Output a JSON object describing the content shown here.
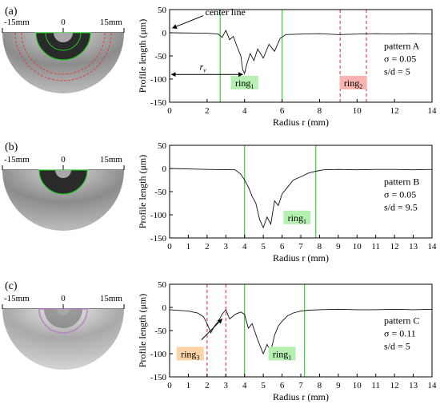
{
  "panels": [
    {
      "panel_label": "(a)",
      "photo": {
        "left_label": "-15mm",
        "center_label": "0",
        "right_label": "15mm",
        "has_dashed_red_rings": true
      },
      "info": {
        "pattern": "pattern A",
        "sigma": "σ = 0.05",
        "sd": "s/d = 5"
      },
      "annotations": {
        "center_line": "center line",
        "rv_base": "r",
        "rv_sub": "v"
      },
      "rings": [
        {
          "base": "ring",
          "sub": "1",
          "color": "green",
          "from": 2.7,
          "to": 6.0,
          "label_x": 4.0,
          "label_y": -112,
          "label_bg": "#b6f0b0"
        },
        {
          "base": "ring",
          "sub": "2",
          "color": "red",
          "from": 9.1,
          "to": 10.5,
          "label_x": 9.8,
          "label_y": -112,
          "label_bg": "#f6b3b0"
        }
      ]
    },
    {
      "panel_label": "(b)",
      "photo": {
        "left_label": "-15mm",
        "center_label": "0",
        "right_label": "15mm",
        "has_dashed_red_rings": false
      },
      "info": {
        "pattern": "pattern B",
        "sigma": "σ = 0.05",
        "sd": "s/d = 9.5"
      },
      "annotations": {},
      "rings": [
        {
          "base": "ring",
          "sub": "1",
          "color": "green",
          "from": 4.0,
          "to": 7.8,
          "label_x": 6.8,
          "label_y": -110,
          "label_bg": "#b6f0b0"
        }
      ]
    },
    {
      "panel_label": "(c)",
      "photo": {
        "left_label": "-15mm",
        "center_label": "0",
        "right_label": "15mm",
        "has_dashed_red_rings": false
      },
      "info": {
        "pattern": "pattern C",
        "sigma": "σ = 0.11",
        "sd": "s/d = 5"
      },
      "annotations": {},
      "rings": [
        {
          "base": "ring",
          "sub": "3",
          "color": "red",
          "from": 2.0,
          "to": 3.0,
          "label_x": 1.1,
          "label_y": -104,
          "label_bg": "#fbd3a6"
        },
        {
          "base": "ring",
          "sub": "1",
          "color": "green",
          "from": 4.0,
          "to": 7.2,
          "label_x": 6.0,
          "label_y": -104,
          "label_bg": "#b6f0b0"
        }
      ]
    }
  ],
  "chart_data": [
    {
      "type": "line",
      "xlabel": "Radius r (mm)",
      "ylabel": "Profile length (μm)",
      "xlim": [
        0,
        14
      ],
      "ylim": [
        -150,
        50
      ],
      "xticks": [
        0,
        2,
        4,
        6,
        8,
        10,
        12,
        14
      ],
      "yticks": [
        50,
        0,
        -50,
        -100,
        -150
      ],
      "series": [
        {
          "x": [
            0,
            2.0,
            2.6,
            2.8,
            3.0,
            3.2,
            3.4,
            3.6,
            3.8,
            3.9,
            4.0,
            4.1,
            4.3,
            4.5,
            4.7,
            5.0,
            5.3,
            5.6,
            5.9,
            6.2,
            7.0,
            8.0,
            9.0,
            10.0,
            11.0,
            12.0,
            13.0,
            14.0
          ],
          "y": [
            0,
            -1,
            -3,
            -10,
            5,
            -15,
            -8,
            -30,
            -50,
            -80,
            -88,
            -70,
            -45,
            -60,
            -35,
            -55,
            -25,
            -40,
            -12,
            -4,
            -3,
            -2,
            -4,
            -3,
            -2,
            -3,
            -2,
            -3
          ]
        }
      ]
    },
    {
      "type": "line",
      "xlabel": "Radius r (mm)",
      "ylabel": "Profile length (μm)",
      "xlim": [
        0,
        14
      ],
      "ylim": [
        -150,
        50
      ],
      "xticks": [
        0,
        1,
        2,
        3,
        4,
        5,
        6,
        7,
        8,
        9,
        10,
        11,
        12,
        13,
        14
      ],
      "yticks": [
        50,
        0,
        -50,
        -100,
        -150
      ],
      "series": [
        {
          "x": [
            0,
            2.0,
            3.5,
            3.8,
            4.0,
            4.2,
            4.4,
            4.6,
            4.8,
            5.0,
            5.2,
            5.4,
            5.6,
            5.8,
            6.0,
            6.3,
            6.6,
            7.0,
            7.4,
            7.8,
            8.2,
            9.0,
            10.0,
            11.0,
            12.0,
            13.0,
            14.0
          ],
          "y": [
            0,
            -2,
            -3,
            -12,
            -25,
            -40,
            -60,
            -75,
            -110,
            -128,
            -105,
            -120,
            -70,
            -80,
            -55,
            -40,
            -25,
            -18,
            -10,
            -6,
            -3,
            -2,
            -3,
            -2,
            -2,
            -3,
            -2
          ]
        }
      ]
    },
    {
      "type": "line",
      "xlabel": "Radius r (mm)",
      "ylabel": "Profile length (μm)",
      "xlim": [
        0,
        14
      ],
      "ylim": [
        -150,
        50
      ],
      "xticks": [
        0,
        1,
        2,
        3,
        4,
        5,
        6,
        7,
        8,
        9,
        10,
        11,
        12,
        13,
        14
      ],
      "yticks": [
        50,
        0,
        -50,
        -100,
        -150
      ],
      "series": [
        {
          "x": [
            0,
            1.0,
            1.5,
            1.8,
            2.0,
            2.2,
            2.4,
            2.6,
            2.8,
            3.0,
            3.2,
            3.5,
            3.8,
            4.0,
            4.2,
            4.4,
            4.7,
            5.0,
            5.2,
            5.4,
            5.6,
            5.8,
            6.0,
            6.3,
            6.6,
            7.0,
            7.4,
            8.0,
            9.0,
            10.0,
            11.0,
            12.0,
            13.0,
            14.0
          ],
          "y": [
            -5,
            -8,
            -12,
            -20,
            -35,
            -55,
            -40,
            -30,
            -15,
            -5,
            -25,
            -15,
            -10,
            -15,
            -45,
            -35,
            -70,
            -100,
            -80,
            -95,
            -60,
            -40,
            -30,
            -18,
            -12,
            -8,
            -6,
            -5,
            -4,
            -5,
            -5,
            -4,
            -5,
            -4
          ]
        }
      ]
    }
  ]
}
